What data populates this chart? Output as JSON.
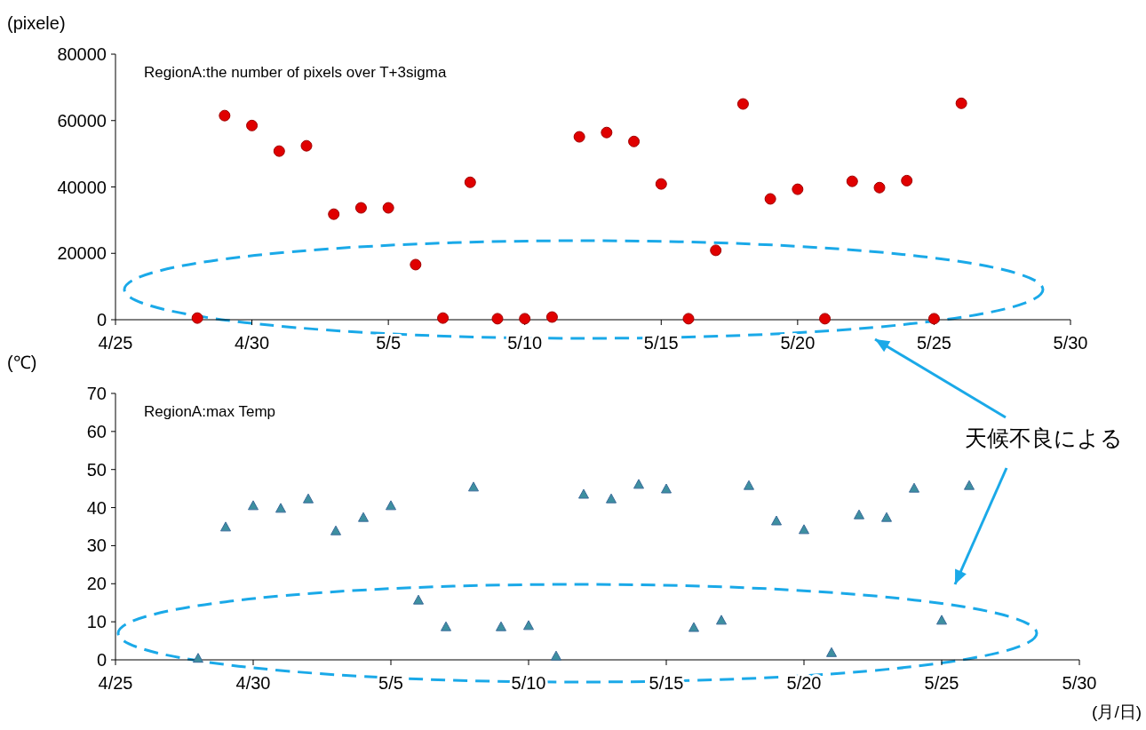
{
  "chart_data": [
    {
      "type": "scatter",
      "title": "RegionA:the number of pixels over T+3sigma",
      "ylabel": "(pixele)",
      "marker": "circle",
      "x": [
        "--04-28",
        "--04-29",
        "--04-30",
        "--05-01",
        "--05-02",
        "--05-03",
        "--05-04",
        "--05-05",
        "--05-06",
        "--05-07",
        "--05-08",
        "--05-09",
        "--05-10",
        "--05-11",
        "--05-12",
        "--05-13",
        "--05-14",
        "--05-15",
        "--05-16",
        "--05-17",
        "--05-18",
        "--05-19",
        "--05-20",
        "--05-21",
        "--05-22",
        "--05-23",
        "--05-24",
        "--05-25",
        "--05-26"
      ],
      "series": [
        {
          "color": "#e00000",
          "values": [
            500,
            61500,
            58500,
            50800,
            52400,
            31800,
            33700,
            33700,
            16600,
            500,
            41400,
            300,
            300,
            800,
            55100,
            56400,
            53700,
            40900,
            300,
            20900,
            65000,
            36400,
            39300,
            300,
            41700,
            39800,
            41900,
            300,
            65200
          ]
        }
      ],
      "xlim": [
        "--04-25",
        "--05-30"
      ],
      "xticks": [
        {
          "value": "--04-25",
          "label": "4/25"
        },
        {
          "value": "--04-30",
          "label": "4/30"
        },
        {
          "value": "--05-05",
          "label": "5/5"
        },
        {
          "value": "--05-10",
          "label": "5/10"
        },
        {
          "value": "--05-15",
          "label": "5/15"
        },
        {
          "value": "--05-20",
          "label": "5/20"
        },
        {
          "value": "--05-25",
          "label": "5/25"
        },
        {
          "value": "--05-30",
          "label": "5/30"
        }
      ],
      "ylim": [
        0,
        80000
      ],
      "yticks": [
        0,
        20000,
        40000,
        60000,
        80000
      ]
    },
    {
      "type": "scatter",
      "title": "RegionA:max Temp",
      "ylabel": "(℃)",
      "xlabel": "(月/日)",
      "marker": "triangle",
      "x": [
        "--04-28",
        "--04-29",
        "--04-30",
        "--05-01",
        "--05-02",
        "--05-03",
        "--05-04",
        "--05-05",
        "--05-06",
        "--05-07",
        "--05-08",
        "--05-09",
        "--05-10",
        "--05-11",
        "--05-12",
        "--05-13",
        "--05-14",
        "--05-15",
        "--05-16",
        "--05-17",
        "--05-18",
        "--05-19",
        "--05-20",
        "--05-21",
        "--05-22",
        "--05-23",
        "--05-24",
        "--05-25",
        "--05-26"
      ],
      "series": [
        {
          "color": "#3d8fa0",
          "values": [
            0.3,
            34.8,
            40.4,
            39.7,
            42.2,
            33.8,
            37.3,
            40.4,
            15.6,
            8.6,
            45.3,
            8.6,
            8.9,
            0.9,
            43.4,
            42.2,
            46.0,
            44.8,
            8.4,
            10.3,
            45.7,
            36.4,
            34.1,
            1.8,
            38.0,
            37.3,
            45.0,
            10.3,
            45.7
          ]
        }
      ],
      "xlim": [
        "--04-25",
        "--05-30"
      ],
      "xticks": [
        {
          "value": "--04-25",
          "label": "4/25"
        },
        {
          "value": "--04-30",
          "label": "4/30"
        },
        {
          "value": "--05-05",
          "label": "5/5"
        },
        {
          "value": "--05-10",
          "label": "5/10"
        },
        {
          "value": "--05-15",
          "label": "5/15"
        },
        {
          "value": "--05-20",
          "label": "5/20"
        },
        {
          "value": "--05-25",
          "label": "5/25"
        },
        {
          "value": "--05-30",
          "label": "5/30"
        }
      ],
      "ylim": [
        0,
        70
      ],
      "yticks": [
        0,
        10,
        20,
        30,
        40,
        50,
        60,
        70
      ],
      "annotations": [
        "天候不良による"
      ]
    }
  ]
}
